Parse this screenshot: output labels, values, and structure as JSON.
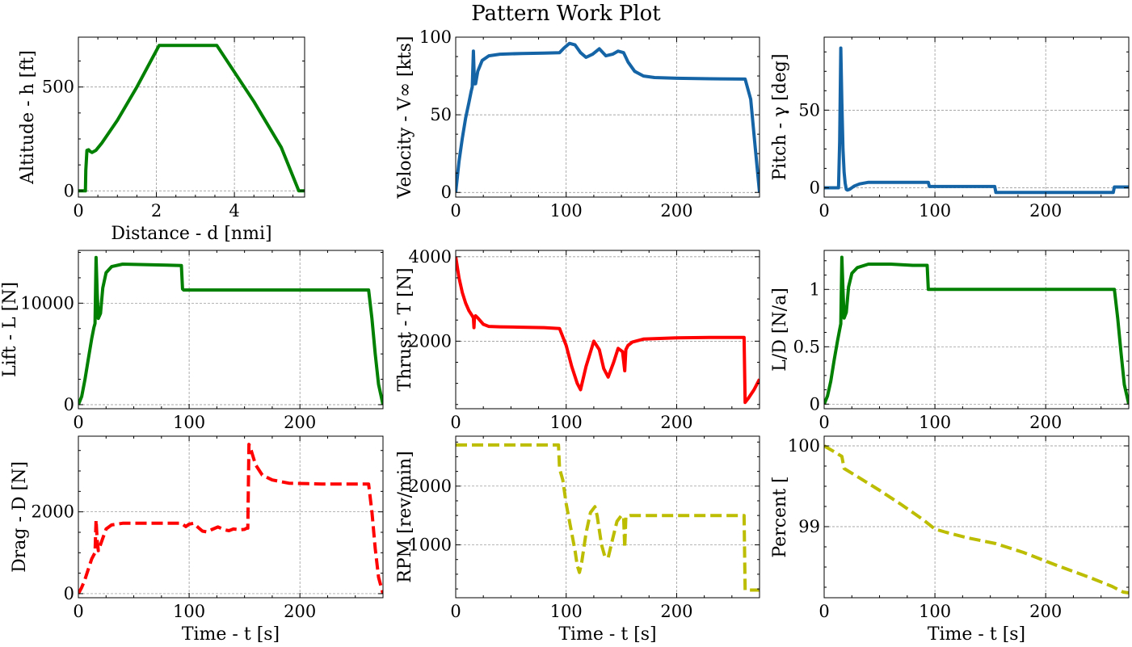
{
  "figure": {
    "title": "Pattern Work Plot"
  },
  "chart_data": [
    {
      "type": "line",
      "xlabel": "Distance - d [nmi]",
      "ylabel": "Altitude - h [ft]",
      "xlim": [
        0,
        5.8
      ],
      "ylim": [
        -30,
        740
      ],
      "xticks": [
        0,
        2,
        4
      ],
      "yticks": [
        0,
        500
      ],
      "grid": true,
      "series": [
        {
          "color": "#008000",
          "style": "solid",
          "x": [
            0,
            0.18,
            0.19,
            0.22,
            0.26,
            0.3,
            0.35,
            0.45,
            0.6,
            1.0,
            1.5,
            2.07,
            3.55,
            4.5,
            5.2,
            5.65,
            5.8
          ],
          "y": [
            0,
            0,
            100,
            195,
            198,
            190,
            185,
            195,
            230,
            340,
            500,
            700,
            700,
            430,
            210,
            0,
            0
          ]
        }
      ]
    },
    {
      "type": "line",
      "xlabel": "",
      "ylabel": "Velocity - V∞ [kts]",
      "xlim": [
        0,
        275
      ],
      "ylim": [
        -3,
        100
      ],
      "xticks": [
        0,
        100,
        200
      ],
      "yticks": [
        0,
        50,
        100
      ],
      "grid": true,
      "series": [
        {
          "color": "#1565a6",
          "style": "solid",
          "x": [
            0,
            3,
            6,
            9,
            12,
            14,
            15,
            16,
            17,
            18,
            20,
            24,
            30,
            40,
            60,
            80,
            94,
            98,
            103,
            108,
            113,
            118,
            124,
            130,
            136,
            142,
            147,
            152,
            156,
            162,
            170,
            180,
            200,
            230,
            262,
            267,
            271,
            275
          ],
          "y": [
            0,
            20,
            35,
            48,
            58,
            65,
            68,
            91,
            70,
            70,
            78,
            85,
            88,
            89,
            89.5,
            89.7,
            90,
            93,
            96,
            95,
            90,
            87,
            89,
            92.5,
            88,
            89,
            91,
            90,
            84,
            78,
            75,
            74,
            73.5,
            73.2,
            73,
            60,
            30,
            0
          ]
        }
      ]
    },
    {
      "type": "line",
      "xlabel": "",
      "ylabel": "Pitch - γ [deg]",
      "xlim": [
        0,
        275
      ],
      "ylim": [
        -6,
        97
      ],
      "xticks": [
        0,
        100,
        200
      ],
      "yticks": [
        0,
        50
      ],
      "grid": true,
      "series": [
        {
          "color": "#1565a6",
          "style": "solid",
          "x": [
            0,
            13,
            14,
            15,
            16,
            17,
            18,
            19,
            20,
            21,
            23,
            27,
            32,
            40,
            60,
            94,
            95,
            154,
            155,
            261,
            262,
            275
          ],
          "y": [
            0,
            0,
            30,
            90,
            55,
            25,
            10,
            3,
            -1,
            -1.5,
            -1,
            1,
            2.5,
            3.5,
            3.5,
            3.5,
            0.8,
            0.8,
            -3,
            -3,
            0.5,
            0.5
          ]
        }
      ]
    },
    {
      "type": "line",
      "xlabel": "",
      "ylabel": "Lift - L [N]",
      "xlim": [
        0,
        275
      ],
      "ylim": [
        -400,
        15200
      ],
      "xticks": [
        0,
        100,
        200
      ],
      "yticks": [
        0,
        10000
      ],
      "grid": true,
      "series": [
        {
          "color": "#008000",
          "style": "solid",
          "x": [
            0,
            3,
            6,
            9,
            12,
            14,
            15,
            16,
            17,
            18,
            20,
            22,
            25,
            30,
            40,
            60,
            80,
            93,
            94,
            95,
            120,
            150,
            180,
            210,
            240,
            262,
            265,
            268,
            271,
            275
          ],
          "y": [
            0,
            800,
            2500,
            4500,
            6500,
            7600,
            8000,
            14500,
            11000,
            8500,
            9000,
            11500,
            13000,
            13600,
            13850,
            13800,
            13750,
            13700,
            11400,
            11300,
            11300,
            11300,
            11300,
            11300,
            11300,
            11300,
            8500,
            5000,
            2000,
            0
          ]
        }
      ]
    },
    {
      "type": "line",
      "xlabel": "",
      "ylabel": "Thrust - T [N]",
      "xlim": [
        0,
        275
      ],
      "ylim": [
        400,
        4150
      ],
      "xticks": [
        0,
        100,
        200
      ],
      "yticks": [
        2000,
        4000
      ],
      "grid": true,
      "series": [
        {
          "color": "#ff0000",
          "style": "solid",
          "x": [
            0,
            3,
            6,
            9,
            12,
            15,
            16,
            16.5,
            17,
            18,
            20,
            25,
            30,
            40,
            60,
            80,
            94,
            100,
            105,
            110,
            113,
            118,
            125,
            130,
            134,
            138,
            143,
            147,
            151,
            153,
            154,
            156,
            160,
            170,
            200,
            230,
            261,
            262,
            265,
            270,
            275
          ],
          "y": [
            4000,
            3500,
            3150,
            2900,
            2720,
            2600,
            2550,
            2320,
            2550,
            2600,
            2550,
            2400,
            2350,
            2340,
            2330,
            2320,
            2300,
            1900,
            1400,
            1000,
            850,
            1400,
            2000,
            1800,
            1350,
            1150,
            1500,
            1830,
            1750,
            1300,
            1800,
            1900,
            1980,
            2050,
            2080,
            2090,
            2090,
            550,
            650,
            850,
            1100
          ]
        }
      ]
    },
    {
      "type": "line",
      "xlabel": "",
      "ylabel": "L/D [N/a]",
      "xlim": [
        0,
        275
      ],
      "ylim": [
        -0.04,
        1.34
      ],
      "xticks": [
        0,
        100,
        200
      ],
      "yticks": [
        0.0,
        0.5,
        1.0
      ],
      "grid": true,
      "series": [
        {
          "color": "#008000",
          "style": "solid",
          "x": [
            0,
            3,
            6,
            9,
            12,
            14,
            15,
            16,
            17,
            18,
            20,
            22,
            25,
            30,
            40,
            60,
            80,
            93,
            94,
            95,
            120,
            150,
            180,
            210,
            240,
            262,
            265,
            268,
            271,
            275
          ],
          "y": [
            0,
            0.07,
            0.2,
            0.38,
            0.55,
            0.65,
            0.7,
            1.28,
            1.0,
            0.75,
            0.8,
            1.02,
            1.14,
            1.19,
            1.22,
            1.22,
            1.21,
            1.21,
            1.0,
            1.0,
            1.0,
            1.0,
            1.0,
            1.0,
            1.0,
            1.0,
            0.75,
            0.45,
            0.17,
            0
          ]
        }
      ]
    },
    {
      "type": "line",
      "xlabel": "Time - t [s]",
      "ylabel": "Drag - D [N]",
      "xlim": [
        0,
        275
      ],
      "ylim": [
        -100,
        3850
      ],
      "xticks": [
        0,
        100,
        200
      ],
      "yticks": [
        0,
        2000
      ],
      "grid": true,
      "series": [
        {
          "color": "#ff0000",
          "style": "dashed",
          "x": [
            0,
            3,
            6,
            9,
            12,
            14,
            15,
            16,
            17,
            18,
            20,
            25,
            30,
            40,
            60,
            80,
            93,
            97,
            100,
            104,
            108,
            112,
            116,
            120,
            126,
            132,
            136,
            140,
            146,
            150,
            152,
            153,
            154,
            156,
            160,
            166,
            175,
            190,
            220,
            262,
            265,
            268,
            271,
            275
          ],
          "y": [
            0,
            150,
            350,
            600,
            850,
            950,
            1000,
            1800,
            1300,
            1050,
            1200,
            1580,
            1680,
            1720,
            1720,
            1720,
            1720,
            1640,
            1700,
            1720,
            1620,
            1530,
            1510,
            1560,
            1630,
            1560,
            1540,
            1580,
            1560,
            1570,
            1600,
            1600,
            3650,
            3500,
            3150,
            2900,
            2780,
            2700,
            2680,
            2680,
            2000,
            1100,
            400,
            0
          ]
        }
      ]
    },
    {
      "type": "line",
      "xlabel": "Time - t [s]",
      "ylabel": "RPM [rev/min]",
      "xlim": [
        0,
        275
      ],
      "ylim": [
        100,
        2850
      ],
      "xticks": [
        0,
        100,
        200
      ],
      "yticks": [
        1000,
        2000
      ],
      "grid": true,
      "series": [
        {
          "color": "#bdbd00",
          "style": "dashed",
          "x": [
            0,
            20,
            40,
            60,
            80,
            93,
            94,
            97,
            100,
            104,
            108,
            110,
            112,
            114,
            118,
            122,
            126,
            128,
            132,
            135,
            138,
            142,
            146,
            150,
            152,
            153,
            154,
            158,
            170,
            200,
            230,
            261,
            262,
            266,
            270,
            275
          ],
          "y": [
            2700,
            2700,
            2700,
            2700,
            2700,
            2700,
            2300,
            2100,
            1700,
            1300,
            900,
            650,
            530,
            700,
            1200,
            1550,
            1650,
            1500,
            1000,
            800,
            780,
            1100,
            1400,
            1500,
            1480,
            950,
            1480,
            1500,
            1500,
            1500,
            1500,
            1500,
            230,
            230,
            230,
            230
          ]
        }
      ]
    },
    {
      "type": "line",
      "xlabel": "Time - t [s]",
      "ylabel": "Percent [",
      "xlim": [
        0,
        275
      ],
      "ylim": [
        98.12,
        100.12
      ],
      "xticks": [
        0,
        100,
        200
      ],
      "yticks": [
        99,
        100
      ],
      "grid": true,
      "series": [
        {
          "color": "#bdbd00",
          "style": "dashed",
          "x": [
            0,
            10,
            16,
            18,
            30,
            50,
            70,
            90,
            100,
            110,
            130,
            155,
            180,
            210,
            240,
            260,
            270,
            275
          ],
          "y": [
            100,
            99.92,
            99.87,
            99.72,
            99.62,
            99.45,
            99.27,
            99.08,
            98.97,
            98.93,
            98.86,
            98.79,
            98.68,
            98.52,
            98.37,
            98.26,
            98.19,
            98.18
          ]
        }
      ]
    }
  ]
}
